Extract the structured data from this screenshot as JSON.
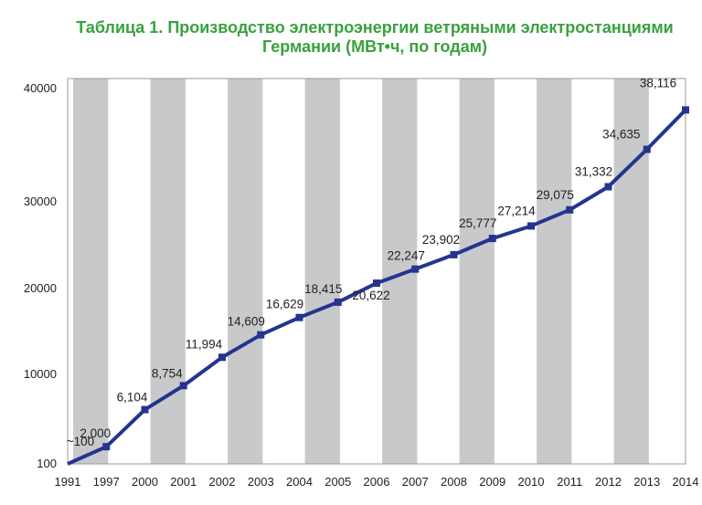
{
  "chart_data": {
    "type": "line",
    "title_lines": [
      "Таблица 1. Производство электроэнергии ветряными электростанциями",
      "Германии (МВт•ч, по годам)"
    ],
    "categories": [
      "1991",
      "1997",
      "2000",
      "2001",
      "2002",
      "2003",
      "2004",
      "2005",
      "2006",
      "2007",
      "2008",
      "2009",
      "2010",
      "2011",
      "2012",
      "2013",
      "2014"
    ],
    "y_tick_labels": [
      "100",
      "10000",
      "20000",
      "30000",
      "40000"
    ],
    "series": [
      {
        "values": [
          100,
          2000,
          6104,
          8754,
          11994,
          14609,
          16629,
          18415,
          20622,
          22247,
          23902,
          25777,
          27214,
          29075,
          31332,
          34635,
          38116
        ],
        "labels": [
          "~100",
          "2,000",
          "6,104",
          "8,754",
          "11,994",
          "14,609",
          "16,629",
          "18,415",
          "20,622",
          "22,247",
          "23,902",
          "25,777",
          "27,214",
          "29,075",
          "31,332",
          "34,635",
          "38,116"
        ],
        "color": "#26348f"
      }
    ],
    "ylim": [
      100,
      43000
    ],
    "alternating_bands": true,
    "band_color": "#c8c9cb",
    "grid": false,
    "legend": "none"
  }
}
